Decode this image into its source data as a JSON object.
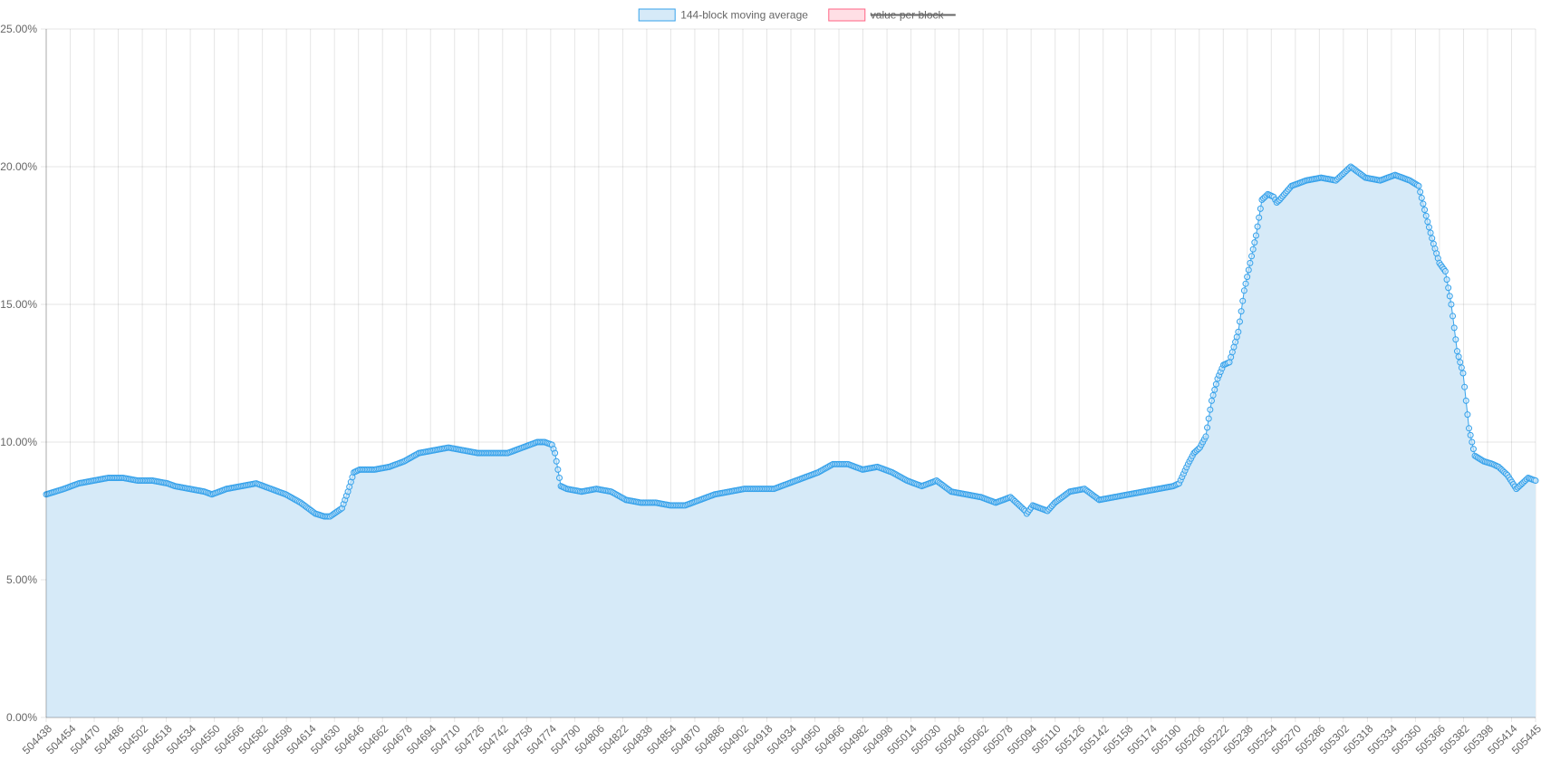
{
  "chart_data": {
    "type": "area",
    "title": "",
    "xlabel": "",
    "ylabel": "",
    "x_range": [
      504438,
      505445
    ],
    "ylim": [
      0,
      25
    ],
    "y_ticks": [
      0,
      5,
      10,
      15,
      20,
      25
    ],
    "y_tick_labels": [
      "0.00%",
      "5.00%",
      "10.00%",
      "15.00%",
      "20.00%",
      "25.00%"
    ],
    "x_tick_labels": [
      "504438",
      "504454",
      "504470",
      "504486",
      "504502",
      "504518",
      "504534",
      "504550",
      "504566",
      "504582",
      "504598",
      "504614",
      "504630",
      "504646",
      "504662",
      "504678",
      "504694",
      "504710",
      "504726",
      "504742",
      "504758",
      "504774",
      "504790",
      "504806",
      "504822",
      "504838",
      "504854",
      "504870",
      "504886",
      "504902",
      "504918",
      "504934",
      "504950",
      "504966",
      "504982",
      "504998",
      "505014",
      "505030",
      "505046",
      "505062",
      "505078",
      "505094",
      "505110",
      "505126",
      "505142",
      "505158",
      "505174",
      "505190",
      "505206",
      "505222",
      "505238",
      "505254",
      "505270",
      "505286",
      "505302",
      "505318",
      "505334",
      "505350",
      "505366",
      "505382",
      "505398",
      "505414",
      "505445"
    ],
    "grid": true,
    "legend_position": "top-center",
    "legend": [
      {
        "label": "144-block moving average",
        "fill": "#d6eaf8",
        "stroke": "#36a2eb",
        "hidden": false
      },
      {
        "label": "value per block",
        "fill": "#ffdfe5",
        "stroke": "#ff6384",
        "hidden": true
      }
    ],
    "series": [
      {
        "name": "144-block moving average",
        "color": "#36a2eb",
        "fill": "#d6eaf8",
        "x": [
          504438,
          504450,
          504460,
          504470,
          504480,
          504490,
          504500,
          504510,
          504520,
          504525,
          504535,
          504545,
          504550,
          504560,
          504570,
          504580,
          504590,
          504600,
          504610,
          504620,
          504626,
          504630,
          504638,
          504642,
          504646,
          504650,
          504660,
          504670,
          504680,
          504690,
          504700,
          504710,
          504720,
          504730,
          504740,
          504750,
          504760,
          504770,
          504775,
          504780,
          504782,
          504784,
          504786,
          504790,
          504800,
          504810,
          504820,
          504830,
          504840,
          504850,
          504860,
          504870,
          504880,
          504890,
          504900,
          504910,
          504920,
          504930,
          504940,
          504950,
          504960,
          504970,
          504980,
          504990,
          505000,
          505010,
          505020,
          505030,
          505040,
          505050,
          505060,
          505070,
          505080,
          505090,
          505100,
          505101,
          505105,
          505110,
          505115,
          505120,
          505130,
          505140,
          505150,
          505160,
          505170,
          505180,
          505190,
          505200,
          505204,
          505210,
          505214,
          505218,
          505222,
          505226,
          505230,
          505234,
          505238,
          505244,
          505248,
          505252,
          505256,
          505260,
          505264,
          505268,
          505270,
          505272,
          505280,
          505290,
          505300,
          505310,
          505320,
          505330,
          505340,
          505350,
          505360,
          505366,
          505372,
          505376,
          505380,
          505384,
          505388,
          505392,
          505396,
          505400,
          505404,
          505410,
          505416,
          505420,
          505426,
          505432,
          505436,
          505440,
          505445
        ],
        "values": [
          8.1,
          8.3,
          8.5,
          8.6,
          8.7,
          8.7,
          8.6,
          8.6,
          8.5,
          8.4,
          8.3,
          8.2,
          8.1,
          8.3,
          8.4,
          8.5,
          8.3,
          8.1,
          7.8,
          7.4,
          7.3,
          7.3,
          7.6,
          8.2,
          8.9,
          9.0,
          9.0,
          9.1,
          9.3,
          9.6,
          9.7,
          9.8,
          9.7,
          9.6,
          9.6,
          9.6,
          9.8,
          10.0,
          10.0,
          9.9,
          9.6,
          9.0,
          8.4,
          8.3,
          8.2,
          8.3,
          8.2,
          7.9,
          7.8,
          7.8,
          7.7,
          7.7,
          7.9,
          8.1,
          8.2,
          8.3,
          8.3,
          8.3,
          8.5,
          8.7,
          8.9,
          9.2,
          9.2,
          9.0,
          9.1,
          8.9,
          8.6,
          8.4,
          8.6,
          8.2,
          8.1,
          8.0,
          7.8,
          8.0,
          7.5,
          7.4,
          7.7,
          7.6,
          7.5,
          7.8,
          8.2,
          8.3,
          7.9,
          8.0,
          8.1,
          8.2,
          8.3,
          8.4,
          8.5,
          9.2,
          9.6,
          9.8,
          10.2,
          11.5,
          12.3,
          12.8,
          12.9,
          14.0,
          15.5,
          16.5,
          17.5,
          18.8,
          19.0,
          18.9,
          18.7,
          18.8,
          19.3,
          19.5,
          19.6,
          19.5,
          20.0,
          19.6,
          19.5,
          19.7,
          19.5,
          19.3,
          18.0,
          17.2,
          16.5,
          16.2,
          15.0,
          13.3,
          12.5,
          10.5,
          9.5,
          9.3,
          9.2,
          9.1,
          8.8,
          8.3,
          8.5,
          8.7,
          8.6
        ]
      }
    ]
  }
}
